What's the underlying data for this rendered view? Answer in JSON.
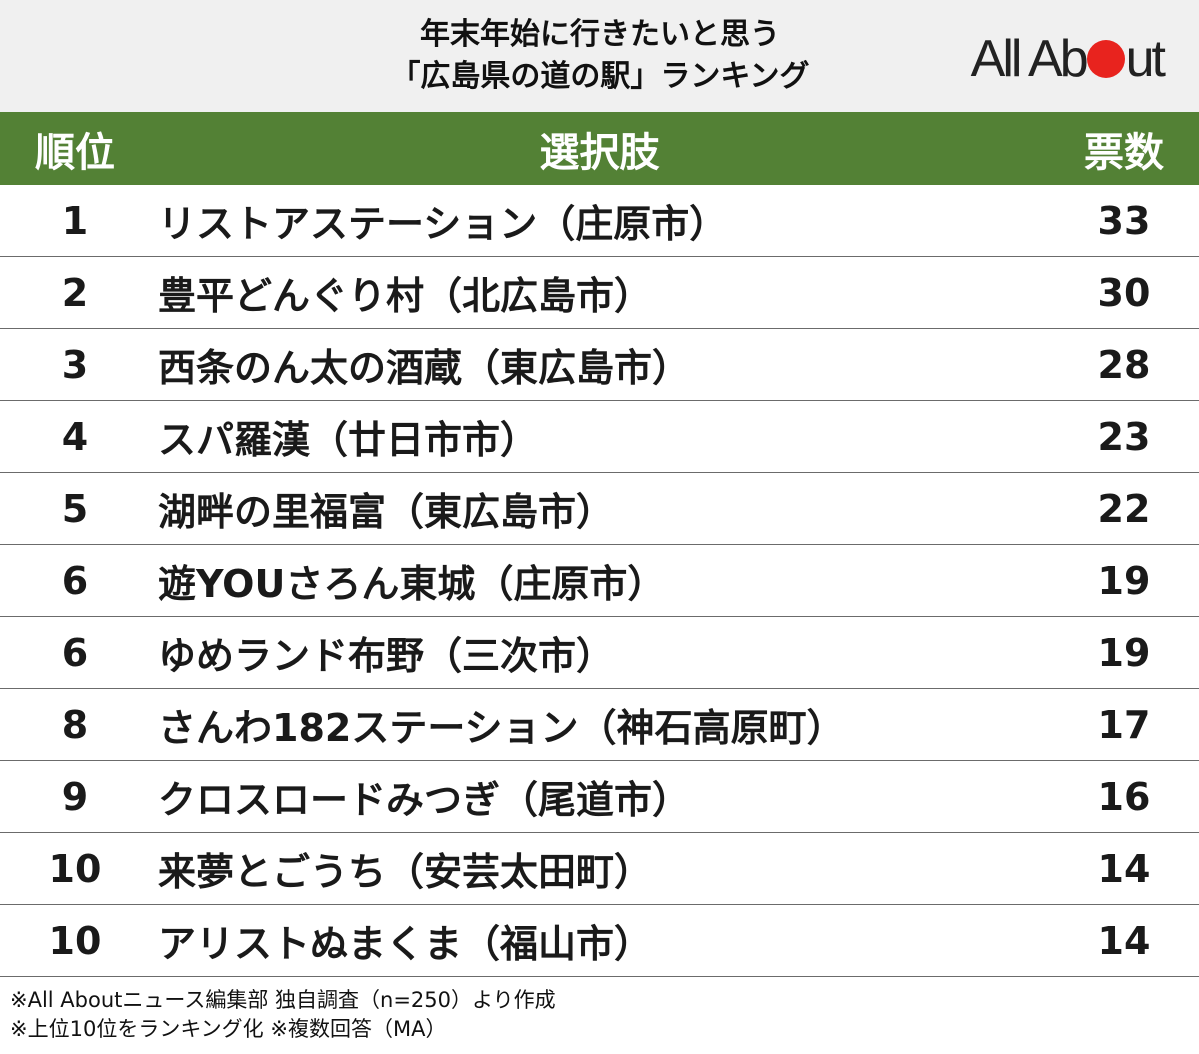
{
  "header": {
    "title_line1": "年末年始に行きたいと思う",
    "title_line2": "「広島県の道の駅」ランキング",
    "logo_pre": "All Ab",
    "logo_post": "ut",
    "logo_dot_color": "#e8231e"
  },
  "table": {
    "header_color": "#538135",
    "columns": [
      "順位",
      "選択肢",
      "票数"
    ],
    "rows": [
      {
        "rank": "1",
        "name": "リストアステーション（庄原市）",
        "votes": "33"
      },
      {
        "rank": "2",
        "name": "豊平どんぐり村（北広島市）",
        "votes": "30"
      },
      {
        "rank": "3",
        "name": "西条のん太の酒蔵（東広島市）",
        "votes": "28"
      },
      {
        "rank": "4",
        "name": "スパ羅漢（廿日市市）",
        "votes": "23"
      },
      {
        "rank": "5",
        "name": "湖畔の里福富（東広島市）",
        "votes": "22"
      },
      {
        "rank": "6",
        "name": "遊YOUさろん東城（庄原市）",
        "votes": "19"
      },
      {
        "rank": "6",
        "name": "ゆめランド布野（三次市）",
        "votes": "19"
      },
      {
        "rank": "8",
        "name": "さんわ182ステーション（神石高原町）",
        "votes": "17"
      },
      {
        "rank": "9",
        "name": "クロスロードみつぎ（尾道市）",
        "votes": "16"
      },
      {
        "rank": "10",
        "name": "来夢とごうち（安芸太田町）",
        "votes": "14"
      },
      {
        "rank": "10",
        "name": "アリストぬまくま（福山市）",
        "votes": "14"
      }
    ]
  },
  "footer": {
    "line1": "※All Aboutニュース編集部 独自調査（n=250）より作成",
    "line2": "※上位10位をランキング化 ※複数回答（MA）"
  }
}
